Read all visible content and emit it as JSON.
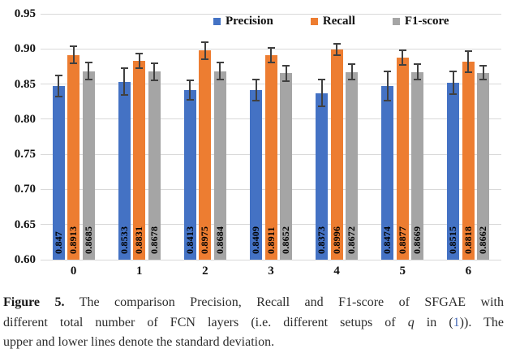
{
  "chart_data": {
    "type": "bar",
    "title": "",
    "xlabel": "",
    "ylabel": "",
    "categories": [
      "0",
      "1",
      "2",
      "3",
      "4",
      "5",
      "6"
    ],
    "series": [
      {
        "name": "Precision",
        "color": "#4472C4",
        "values": [
          0.847,
          0.8533,
          0.8413,
          0.8409,
          0.8373,
          0.8474,
          0.8515
        ],
        "labels": [
          "0.847",
          "0.8533",
          "0.8413",
          "0.8409",
          "0.8373",
          "0.8474",
          "0.8515"
        ],
        "stdev": [
          0.015,
          0.019,
          0.014,
          0.015,
          0.019,
          0.021,
          0.016
        ]
      },
      {
        "name": "Recall",
        "color": "#ED7D31",
        "values": [
          0.8913,
          0.8831,
          0.8975,
          0.8911,
          0.8996,
          0.8877,
          0.8818
        ],
        "labels": [
          "0.8913",
          "0.8831",
          "0.8975",
          "0.8911",
          "0.8996",
          "0.8877",
          "0.8818"
        ],
        "stdev": [
          0.012,
          0.01,
          0.012,
          0.01,
          0.008,
          0.01,
          0.015
        ]
      },
      {
        "name": "F1-score",
        "color": "#A5A5A5",
        "values": [
          0.8685,
          0.8678,
          0.8684,
          0.8652,
          0.8672,
          0.8669,
          0.8662
        ],
        "labels": [
          "0.8685",
          "0.8678",
          "0.8684",
          "0.8652",
          "0.8672",
          "0.8669",
          "0.8662"
        ],
        "stdev": [
          0.012,
          0.012,
          0.012,
          0.011,
          0.011,
          0.011,
          0.01
        ]
      }
    ],
    "ylim": [
      0.6,
      0.95
    ],
    "ytick_labels": [
      "0.95",
      "0.90",
      "0.85",
      "0.80",
      "0.75",
      "0.70",
      "0.65",
      "0.60"
    ],
    "grid": true,
    "gridline_color": "#D9D9D9",
    "error_bar_color": "#404040",
    "legend_position": "top",
    "bar_value_labels_rotated": true
  },
  "caption": {
    "label": "Figure 5.",
    "line1_rest": " The comparison Precision, Recall and F1-score of SFGAE with",
    "line2_a": "different total number of FCN layers (i.e. different setups of ",
    "line2_q": "q",
    "line2_b": " in (",
    "line2_ref": "1",
    "line2_c": ")). The",
    "line3": "upper and lower lines denote the standard deviation."
  }
}
